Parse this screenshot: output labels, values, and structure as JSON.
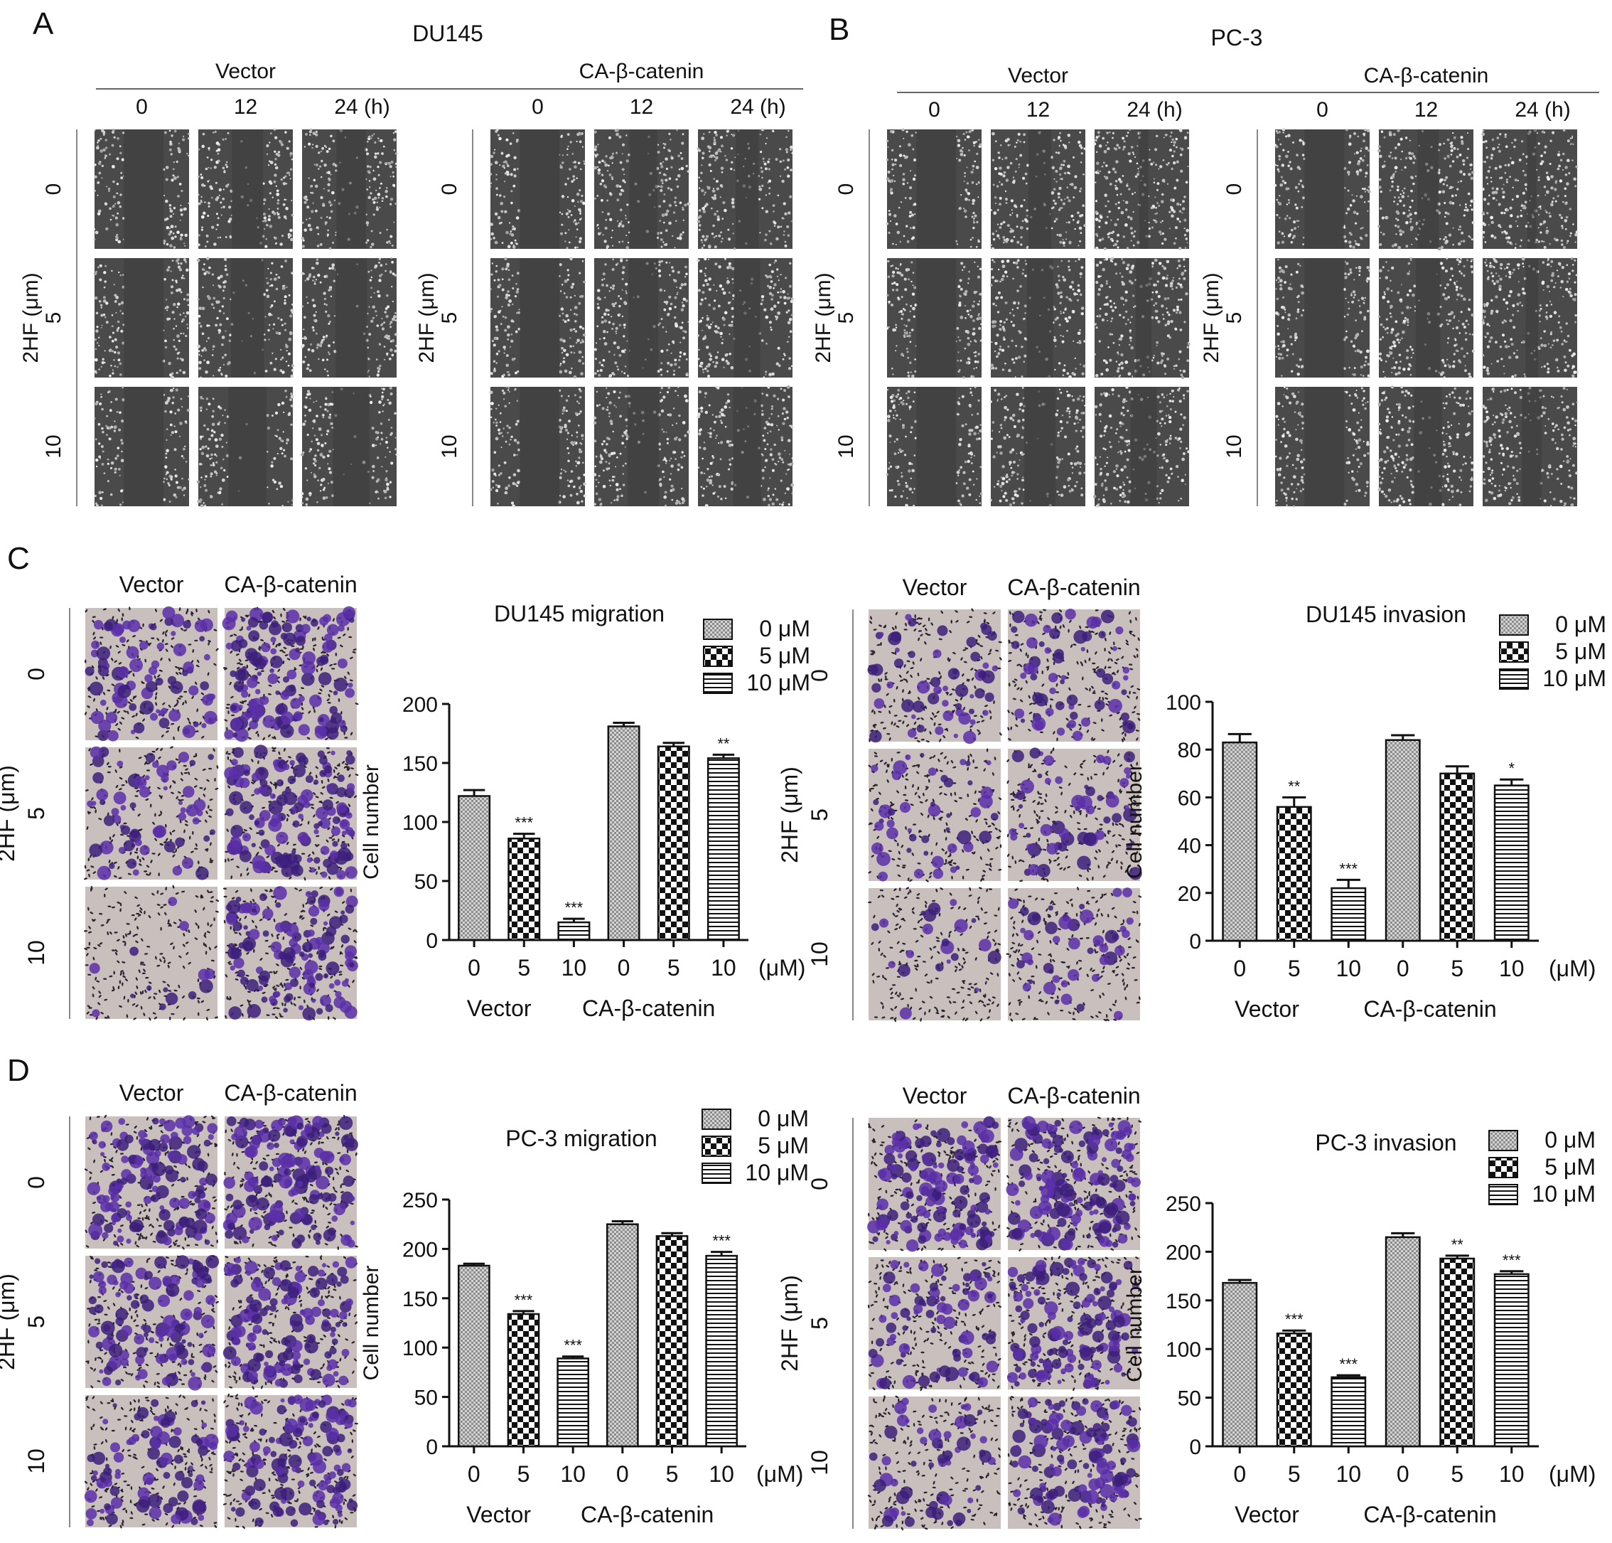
{
  "panel_letters": [
    "A",
    "B",
    "C",
    "D"
  ],
  "scratch": [
    {
      "cell_line": "DU145",
      "group_labels": [
        "Vector",
        "CA-β-catenin"
      ],
      "time_labels": [
        "0",
        "12",
        "24 (h)"
      ],
      "dose_axis_label": "2HF (μm)",
      "dose_labels": [
        "0",
        "5",
        "10"
      ],
      "gap_closure": {
        "Vector": [
          [
            0.0,
            0.25,
            0.3
          ],
          [
            0.0,
            0.2,
            0.25
          ],
          [
            0.0,
            0.05,
            0.1
          ]
        ],
        "CA-β-catenin": [
          [
            0.0,
            0.35,
            0.5
          ],
          [
            0.0,
            0.3,
            0.4
          ],
          [
            0.0,
            0.25,
            0.35
          ]
        ]
      }
    },
    {
      "cell_line": "PC-3",
      "group_labels": [
        "Vector",
        "CA-β-catenin"
      ],
      "time_labels": [
        "0",
        "12",
        "24 (h)"
      ],
      "dose_axis_label": "2HF (μm)",
      "dose_labels": [
        "0",
        "5",
        "10"
      ],
      "gap_closure": {
        "Vector": [
          [
            0.0,
            0.5,
            0.9
          ],
          [
            0.0,
            0.4,
            0.7
          ],
          [
            0.0,
            0.25,
            0.4
          ]
        ],
        "CA-β-catenin": [
          [
            0.0,
            0.55,
            0.9
          ],
          [
            0.0,
            0.45,
            0.8
          ],
          [
            0.0,
            0.35,
            0.6
          ]
        ]
      }
    }
  ],
  "transwell_groups": {
    "column_labels": [
      "Vector",
      "CA-β-catenin"
    ],
    "dose_axis_label": "2HF (μm)",
    "dose_labels": [
      "0",
      "5",
      "10"
    ],
    "stain_density": {
      "DU145 migration": [
        [
          0.45,
          0.75
        ],
        [
          0.35,
          0.8
        ],
        [
          0.08,
          0.65
        ]
      ],
      "DU145 invasion": [
        [
          0.3,
          0.35
        ],
        [
          0.25,
          0.3
        ],
        [
          0.12,
          0.25
        ]
      ],
      "PC-3 migration": [
        [
          0.75,
          0.8
        ],
        [
          0.65,
          0.75
        ],
        [
          0.45,
          0.7
        ]
      ],
      "PC-3 invasion": [
        [
          0.75,
          0.8
        ],
        [
          0.45,
          0.7
        ],
        [
          0.3,
          0.6
        ]
      ]
    }
  },
  "legend_labels": [
    "0 μM",
    "5 μM",
    "10 μM"
  ],
  "chart_data": [
    {
      "type": "bar",
      "title": "DU145 migration",
      "ylabel": "Cell number",
      "xlabel": "",
      "x_unit": "(μM)",
      "ylim": [
        0,
        200
      ],
      "yticks": [
        0,
        50,
        100,
        150,
        200
      ],
      "categories": [
        "0",
        "5",
        "10",
        "0",
        "5",
        "10"
      ],
      "groups": [
        "Vector",
        "CA-β-catenin"
      ],
      "values": [
        122,
        86,
        15,
        181,
        164,
        154
      ],
      "errors": [
        5,
        4,
        3,
        3,
        3,
        3
      ],
      "significance": [
        "",
        "***",
        "***",
        "",
        "",
        "**"
      ],
      "pattern": [
        "0 μM",
        "5 μM",
        "10 μM",
        "0 μM",
        "5 μM",
        "10 μM"
      ]
    },
    {
      "type": "bar",
      "title": "DU145 invasion",
      "ylabel": "Cell number",
      "xlabel": "",
      "x_unit": "(μM)",
      "ylim": [
        0,
        100
      ],
      "yticks": [
        0,
        20,
        40,
        60,
        80,
        100
      ],
      "categories": [
        "0",
        "5",
        "10",
        "0",
        "5",
        "10"
      ],
      "groups": [
        "Vector",
        "CA-β-catenin"
      ],
      "values": [
        83,
        56,
        22,
        84,
        70,
        65
      ],
      "errors": [
        3.5,
        4,
        3.5,
        2,
        3,
        2.5
      ],
      "significance": [
        "",
        "**",
        "***",
        "",
        "",
        "*"
      ],
      "pattern": [
        "0 μM",
        "5 μM",
        "10 μM",
        "0 μM",
        "5 μM",
        "10 μM"
      ]
    },
    {
      "type": "bar",
      "title": "PC-3 migration",
      "ylabel": "Cell number",
      "xlabel": "",
      "x_unit": "(μM)",
      "ylim": [
        0,
        250
      ],
      "yticks": [
        0,
        50,
        100,
        150,
        200,
        250
      ],
      "categories": [
        "0",
        "5",
        "10",
        "0",
        "5",
        "10"
      ],
      "groups": [
        "Vector",
        "CA-β-catenin"
      ],
      "values": [
        183,
        134,
        89,
        225,
        213,
        193
      ],
      "errors": [
        2,
        3,
        2,
        3,
        3,
        4
      ],
      "significance": [
        "",
        "***",
        "***",
        "",
        "",
        "***"
      ],
      "pattern": [
        "0 μM",
        "5 μM",
        "10 μM",
        "0 μM",
        "5 μM",
        "10 μM"
      ]
    },
    {
      "type": "bar",
      "title": "PC-3 invasion",
      "ylabel": "Cell number",
      "xlabel": "",
      "x_unit": "(μM)",
      "ylim": [
        0,
        250
      ],
      "yticks": [
        0,
        50,
        100,
        150,
        200,
        250
      ],
      "categories": [
        "0",
        "5",
        "10",
        "0",
        "5",
        "10"
      ],
      "groups": [
        "Vector",
        "CA-β-catenin"
      ],
      "values": [
        168,
        116,
        71,
        215,
        193,
        177
      ],
      "errors": [
        3,
        3,
        2,
        4,
        3,
        3
      ],
      "significance": [
        "",
        "***",
        "***",
        "",
        "**",
        "***"
      ],
      "pattern": [
        "0 μM",
        "5 μM",
        "10 μM",
        "0 μM",
        "5 μM",
        "10 μM"
      ]
    }
  ]
}
